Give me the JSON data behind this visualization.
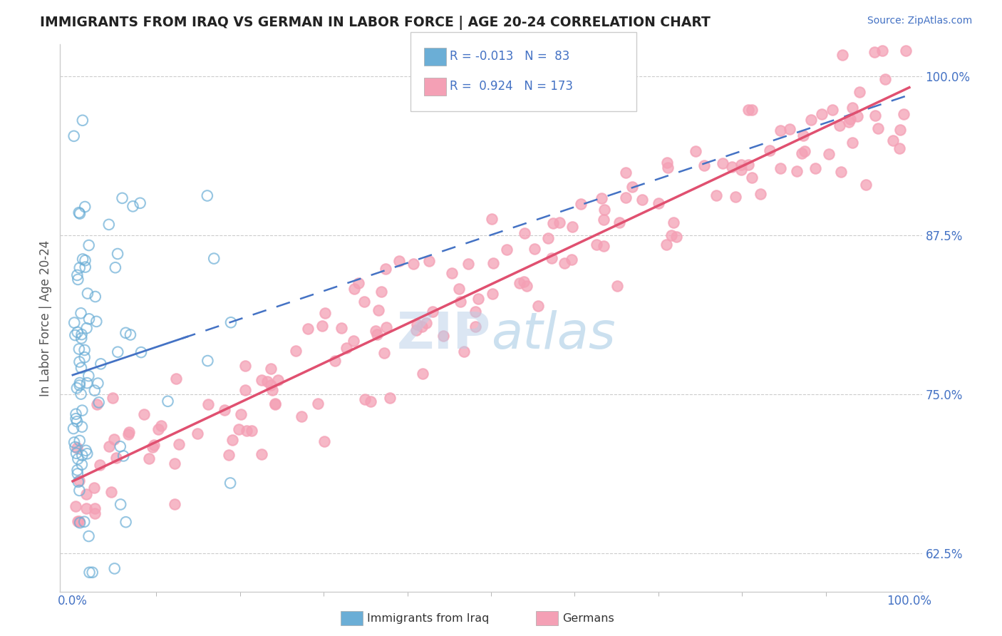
{
  "title": "IMMIGRANTS FROM IRAQ VS GERMAN IN LABOR FORCE | AGE 20-24 CORRELATION CHART",
  "source_text": "Source: ZipAtlas.com",
  "ylabel": "In Labor Force | Age 20-24",
  "yaxis_labels": [
    "62.5%",
    "75.0%",
    "87.5%",
    "100.0%"
  ],
  "yaxis_values": [
    0.625,
    0.75,
    0.875,
    1.0
  ],
  "legend_label1": "Immigrants from Iraq",
  "legend_label2": "Germans",
  "color_iraq": "#6baed6",
  "color_german": "#f4a0b5",
  "color_german_line": "#e05070",
  "color_iraq_line": "#4472c4",
  "watermark_part1": "ZIP",
  "watermark_part2": "atlas",
  "seed": 123
}
